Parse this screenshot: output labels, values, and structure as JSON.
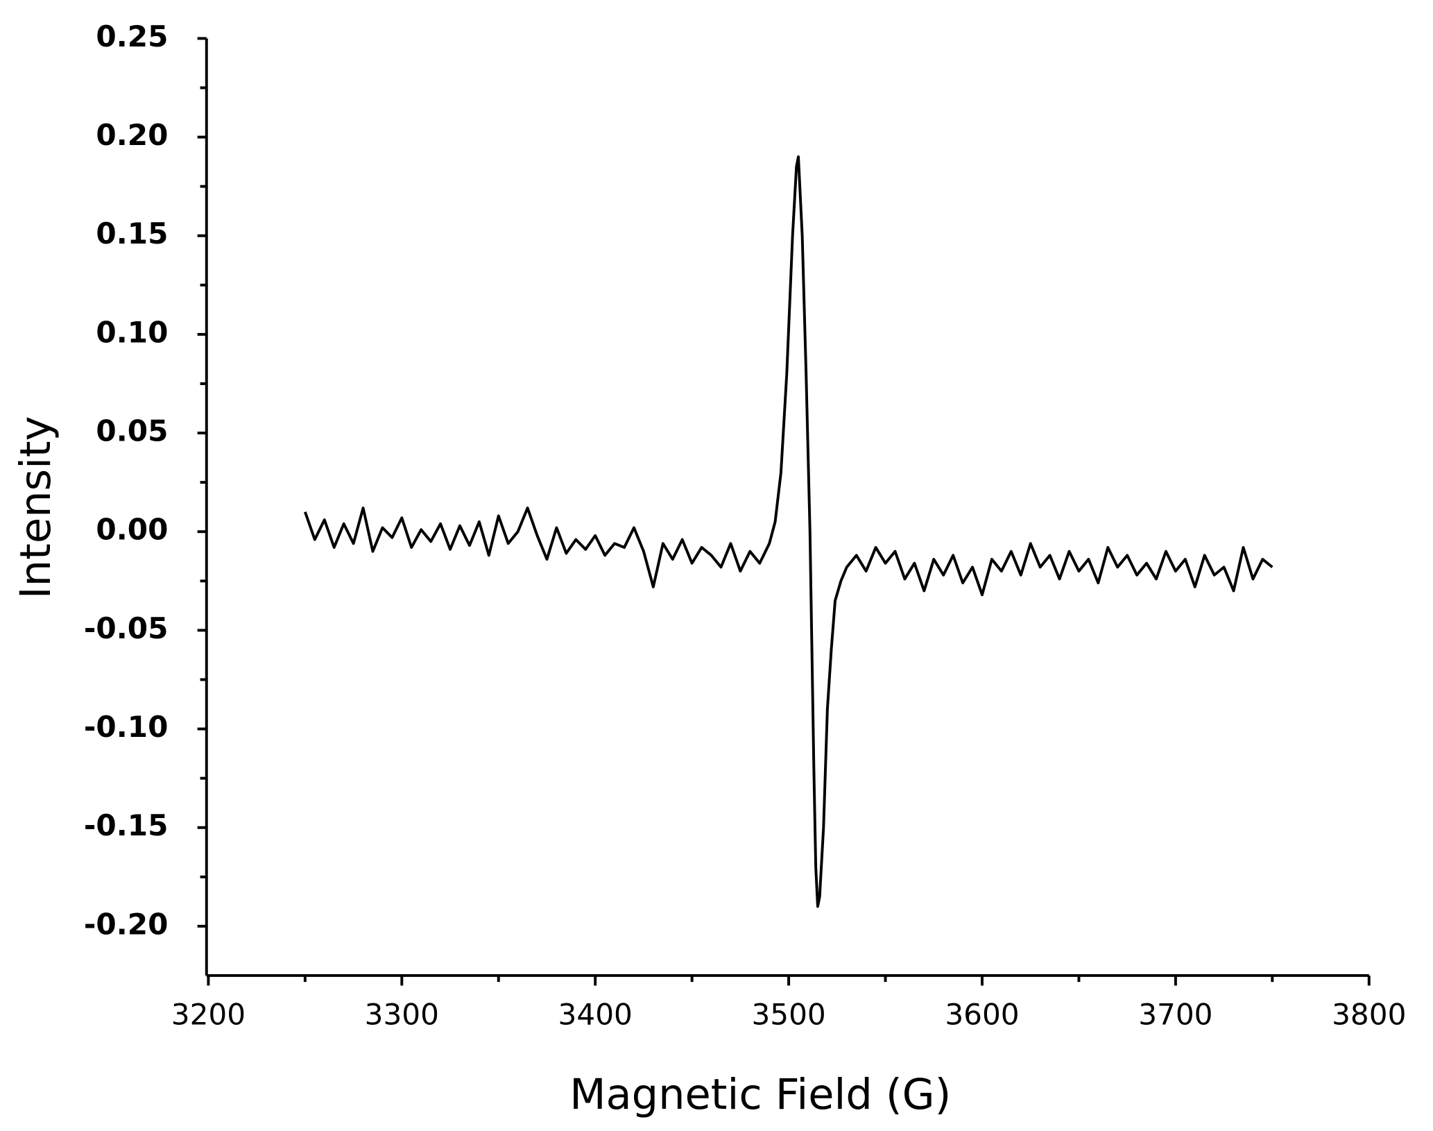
{
  "chart_data": {
    "type": "line",
    "x_label": "Magnetic Field (G)",
    "y_label": "Intensity",
    "x": [
      3250,
      3255,
      3260,
      3265,
      3270,
      3275,
      3280,
      3285,
      3290,
      3295,
      3300,
      3305,
      3310,
      3315,
      3320,
      3325,
      3330,
      3335,
      3340,
      3345,
      3350,
      3355,
      3360,
      3365,
      3370,
      3375,
      3380,
      3385,
      3390,
      3395,
      3400,
      3405,
      3410,
      3415,
      3420,
      3425,
      3430,
      3435,
      3440,
      3445,
      3450,
      3455,
      3460,
      3465,
      3470,
      3475,
      3480,
      3485,
      3490,
      3493,
      3496,
      3499,
      3502,
      3504,
      3505,
      3507,
      3509,
      3511,
      3513,
      3514,
      3515,
      3516,
      3518,
      3520,
      3522,
      3524,
      3527,
      3530,
      3535,
      3540,
      3545,
      3550,
      3555,
      3560,
      3565,
      3570,
      3575,
      3580,
      3585,
      3590,
      3595,
      3600,
      3605,
      3610,
      3615,
      3620,
      3625,
      3630,
      3635,
      3640,
      3645,
      3650,
      3655,
      3660,
      3665,
      3670,
      3675,
      3680,
      3685,
      3690,
      3695,
      3700,
      3705,
      3710,
      3715,
      3720,
      3725,
      3730,
      3735,
      3740,
      3745,
      3750
    ],
    "values": [
      0.01,
      -0.004,
      0.006,
      -0.008,
      0.004,
      -0.006,
      0.012,
      -0.01,
      0.002,
      -0.003,
      0.007,
      -0.008,
      0.001,
      -0.005,
      0.004,
      -0.009,
      0.003,
      -0.007,
      0.005,
      -0.012,
      0.008,
      -0.006,
      0.0,
      0.012,
      -0.002,
      -0.014,
      0.002,
      -0.011,
      -0.004,
      -0.009,
      -0.002,
      -0.012,
      -0.006,
      -0.008,
      0.002,
      -0.01,
      -0.028,
      -0.006,
      -0.014,
      -0.004,
      -0.016,
      -0.008,
      -0.012,
      -0.018,
      -0.006,
      -0.02,
      -0.01,
      -0.016,
      -0.006,
      0.005,
      0.03,
      0.08,
      0.15,
      0.185,
      0.19,
      0.15,
      0.08,
      0.0,
      -0.12,
      -0.17,
      -0.19,
      -0.185,
      -0.15,
      -0.09,
      -0.06,
      -0.035,
      -0.025,
      -0.018,
      -0.012,
      -0.02,
      -0.008,
      -0.016,
      -0.01,
      -0.024,
      -0.016,
      -0.03,
      -0.014,
      -0.022,
      -0.012,
      -0.026,
      -0.018,
      -0.032,
      -0.014,
      -0.02,
      -0.01,
      -0.022,
      -0.006,
      -0.018,
      -0.012,
      -0.024,
      -0.01,
      -0.02,
      -0.014,
      -0.026,
      -0.008,
      -0.018,
      -0.012,
      -0.022,
      -0.016,
      -0.024,
      -0.01,
      -0.02,
      -0.014,
      -0.028,
      -0.012,
      -0.022,
      -0.018,
      -0.03,
      -0.008,
      -0.024,
      -0.014,
      -0.018
    ],
    "color": "#000000",
    "xlim": [
      3200,
      3800
    ],
    "xticks": [
      3200,
      3300,
      3400,
      3500,
      3600,
      3700,
      3800
    ],
    "ylim": [
      -0.225,
      0.25
    ],
    "yticks": [
      {
        "value": 0.25,
        "label": "0.25"
      },
      {
        "value": 0.2,
        "label": "0.20"
      },
      {
        "value": 0.15,
        "label": "0.15"
      },
      {
        "value": 0.1,
        "label": "0.10"
      },
      {
        "value": 0.05,
        "label": "0.05"
      },
      {
        "value": 0,
        "label": "0.00"
      },
      {
        "value": -0.05,
        "label": "-0.05"
      },
      {
        "value": -0.1,
        "label": "-0.10"
      },
      {
        "value": -0.15,
        "label": "-0.15"
      },
      {
        "value": -0.2,
        "label": "-0.20"
      }
    ],
    "grid": false
  }
}
